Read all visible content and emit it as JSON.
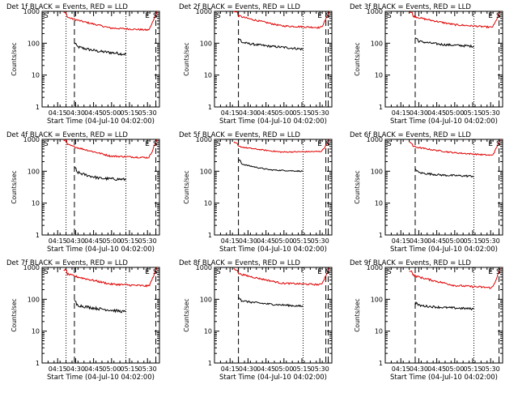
{
  "colors": {
    "events": "#000000",
    "lld": "#e00000",
    "axes": "#000000",
    "background": "#ffffff"
  },
  "chart_data": [
    {
      "type": "line",
      "title": "Det 1f BLACK = Events, RED = LLD",
      "xlabel": "Start Time (04-Jul-10 04:02:00)",
      "ylabel": "Counts/sec",
      "yscale": "log",
      "ylim": [
        1,
        1000
      ],
      "xlim": [
        "04:02",
        "05:40"
      ],
      "x_ticks": [
        "04:15",
        "04:30",
        "04:45",
        "05:00",
        "05:15",
        "05:30"
      ],
      "y_ticks": [
        "1",
        "10",
        "100",
        "1000"
      ],
      "markers": [
        {
          "label": "S",
          "time": "04:02"
        },
        {
          "label": "E",
          "time": "05:28"
        },
        {
          "label": "S",
          "time": "05:39"
        }
      ],
      "vlines": [
        {
          "time": "04:22",
          "style": "dotted"
        },
        {
          "time": "04:29",
          "style": "dashed"
        },
        {
          "time": "05:12",
          "style": "dotted"
        },
        {
          "time": "05:37",
          "style": "dashed"
        }
      ],
      "series": [
        {
          "name": "Events",
          "color": "#000000",
          "start": "04:29",
          "end": "05:12",
          "start_value": 90,
          "mid_value": 55,
          "end_value": 45,
          "noise": 0.1
        },
        {
          "name": "LLD",
          "color": "#e00000",
          "start": "04:20",
          "end": "05:38",
          "start_value": 800,
          "mid_value": 300,
          "end_value": 250,
          "rise_end": 1000,
          "noise": 0.06
        }
      ]
    },
    {
      "type": "line",
      "title": "Det 2f BLACK = Events, RED = LLD",
      "xlabel": "Start Time (04-Jul-10 04:02:00)",
      "ylabel": "Counts/sec",
      "yscale": "log",
      "ylim": [
        1,
        1000
      ],
      "xlim": [
        "04:02",
        "05:40"
      ],
      "x_ticks": [
        "04:15",
        "04:30",
        "04:45",
        "05:00",
        "05:15",
        "05:30"
      ],
      "y_ticks": [
        "1",
        "10",
        "100",
        "1000"
      ],
      "markers": [
        {
          "label": "S",
          "time": "04:02"
        },
        {
          "label": "E",
          "time": "05:28"
        },
        {
          "label": "S",
          "time": "05:39"
        }
      ],
      "vlines": [
        {
          "time": "04:22",
          "style": "dashed"
        },
        {
          "time": "05:16",
          "style": "dotted"
        },
        {
          "time": "05:35",
          "style": "dashed"
        },
        {
          "time": "05:37",
          "style": "dashed"
        }
      ],
      "series": [
        {
          "name": "Events",
          "color": "#000000",
          "start": "04:22",
          "end": "05:16",
          "start_value": 120,
          "mid_value": 80,
          "end_value": 65,
          "noise": 0.08
        },
        {
          "name": "LLD",
          "color": "#e00000",
          "start": "04:18",
          "end": "05:38",
          "start_value": 900,
          "mid_value": 350,
          "end_value": 300,
          "rise_end": 1000,
          "noise": 0.06
        }
      ]
    },
    {
      "type": "line",
      "title": "Det 3f BLACK = Events, RED = LLD",
      "xlabel": "Start Time (04-Jul-10 04:02:00)",
      "ylabel": "Counts/sec",
      "yscale": "log",
      "ylim": [
        1,
        1000
      ],
      "xlim": [
        "04:02",
        "05:40"
      ],
      "x_ticks": [
        "04:15",
        "04:30",
        "04:45",
        "05:00",
        "05:15",
        "05:30"
      ],
      "y_ticks": [
        "1",
        "10",
        "100",
        "1000"
      ],
      "markers": [
        {
          "label": "S",
          "time": "04:02"
        },
        {
          "label": "E",
          "time": "05:28"
        },
        {
          "label": "S",
          "time": "05:39"
        }
      ],
      "vlines": [
        {
          "time": "04:27",
          "style": "dashed"
        },
        {
          "time": "05:16",
          "style": "dotted"
        },
        {
          "time": "05:37",
          "style": "dashed"
        }
      ],
      "series": [
        {
          "name": "Events",
          "color": "#000000",
          "start": "04:27",
          "end": "05:16",
          "start_value": 130,
          "mid_value": 90,
          "end_value": 80,
          "noise": 0.08
        },
        {
          "name": "LLD",
          "color": "#e00000",
          "start": "04:22",
          "end": "05:38",
          "start_value": 850,
          "mid_value": 380,
          "end_value": 300,
          "rise_end": 1000,
          "noise": 0.06
        }
      ]
    },
    {
      "type": "line",
      "title": "Det 4f BLACK = Events, RED = LLD",
      "xlabel": "Start Time (04-Jul-10 04:02:00)",
      "ylabel": "Counts/sec",
      "yscale": "log",
      "ylim": [
        1,
        1000
      ],
      "xlim": [
        "04:02",
        "05:40"
      ],
      "x_ticks": [
        "04:15",
        "04:30",
        "04:45",
        "05:00",
        "05:15",
        "05:30"
      ],
      "y_ticks": [
        "1",
        "10",
        "100",
        "1000"
      ],
      "markers": [
        {
          "label": "S",
          "time": "04:02"
        },
        {
          "label": "E",
          "time": "05:28"
        },
        {
          "label": "S",
          "time": "05:39"
        }
      ],
      "vlines": [
        {
          "time": "04:22",
          "style": "dotted"
        },
        {
          "time": "04:29",
          "style": "dashed"
        },
        {
          "time": "05:12",
          "style": "dotted"
        },
        {
          "time": "05:37",
          "style": "dashed"
        }
      ],
      "series": [
        {
          "name": "Events",
          "color": "#000000",
          "start": "04:29",
          "end": "05:12",
          "start_value": 110,
          "mid_value": 60,
          "end_value": 55,
          "noise": 0.1
        },
        {
          "name": "LLD",
          "color": "#e00000",
          "start": "04:20",
          "end": "05:38",
          "start_value": 850,
          "mid_value": 300,
          "end_value": 260,
          "rise_end": 1000,
          "noise": 0.06
        }
      ]
    },
    {
      "type": "line",
      "title": "Det 5f BLACK = Events, RED = LLD",
      "xlabel": "Start Time (04-Jul-10 04:02:00)",
      "ylabel": "Counts/sec",
      "yscale": "log",
      "ylim": [
        1,
        1000
      ],
      "xlim": [
        "04:02",
        "05:40"
      ],
      "x_ticks": [
        "04:15",
        "04:30",
        "04:45",
        "05:00",
        "05:15",
        "05:30"
      ],
      "y_ticks": [
        "1",
        "10",
        "100",
        "1000"
      ],
      "markers": [
        {
          "label": "S",
          "time": "04:02"
        },
        {
          "label": "E",
          "time": "05:28"
        },
        {
          "label": "S",
          "time": "05:39"
        }
      ],
      "vlines": [
        {
          "time": "04:22",
          "style": "dashed"
        },
        {
          "time": "05:16",
          "style": "dotted"
        },
        {
          "time": "05:35",
          "style": "dashed"
        },
        {
          "time": "05:37",
          "style": "dashed"
        }
      ],
      "series": [
        {
          "name": "Events",
          "color": "#000000",
          "start": "04:22",
          "end": "05:16",
          "start_value": 200,
          "mid_value": 110,
          "end_value": 100,
          "noise": 0.04
        },
        {
          "name": "LLD",
          "color": "#e00000",
          "start": "04:18",
          "end": "05:38",
          "start_value": 700,
          "mid_value": 400,
          "end_value": 420,
          "rise_end": 1000,
          "noise": 0.04
        }
      ]
    },
    {
      "type": "line",
      "title": "Det 6f BLACK = Events, RED = LLD",
      "xlabel": "Start Time (04-Jul-10 04:02:00)",
      "ylabel": "Counts/sec",
      "yscale": "log",
      "ylim": [
        1,
        1000
      ],
      "xlim": [
        "04:02",
        "05:40"
      ],
      "x_ticks": [
        "04:15",
        "04:30",
        "04:45",
        "05:00",
        "05:15",
        "05:30"
      ],
      "y_ticks": [
        "1",
        "10",
        "100",
        "1000"
      ],
      "markers": [
        {
          "label": "S",
          "time": "04:02"
        },
        {
          "label": "E",
          "time": "05:28"
        },
        {
          "label": "S",
          "time": "05:39"
        }
      ],
      "vlines": [
        {
          "time": "04:27",
          "style": "dashed"
        },
        {
          "time": "05:16",
          "style": "dotted"
        },
        {
          "time": "05:37",
          "style": "dashed"
        }
      ],
      "series": [
        {
          "name": "Events",
          "color": "#000000",
          "start": "04:27",
          "end": "05:16",
          "start_value": 100,
          "mid_value": 75,
          "end_value": 70,
          "noise": 0.07
        },
        {
          "name": "LLD",
          "color": "#e00000",
          "start": "04:22",
          "end": "05:38",
          "start_value": 700,
          "mid_value": 380,
          "end_value": 300,
          "rise_end": 1000,
          "noise": 0.05
        }
      ]
    },
    {
      "type": "line",
      "title": "Det 7f BLACK = Events, RED = LLD",
      "xlabel": "Start Time (04-Jul-10 04:02:00)",
      "ylabel": "Counts/sec",
      "yscale": "log",
      "ylim": [
        1,
        1000
      ],
      "xlim": [
        "04:02",
        "05:40"
      ],
      "x_ticks": [
        "04:15",
        "04:30",
        "04:45",
        "05:00",
        "05:15",
        "05:30"
      ],
      "y_ticks": [
        "1",
        "10",
        "100",
        "1000"
      ],
      "markers": [
        {
          "label": "S",
          "time": "04:02"
        },
        {
          "label": "E",
          "time": "05:28"
        },
        {
          "label": "S",
          "time": "05:39"
        }
      ],
      "vlines": [
        {
          "time": "04:22",
          "style": "dotted"
        },
        {
          "time": "04:29",
          "style": "dashed"
        },
        {
          "time": "05:12",
          "style": "dotted"
        },
        {
          "time": "05:37",
          "style": "dashed"
        }
      ],
      "series": [
        {
          "name": "Events",
          "color": "#000000",
          "start": "04:29",
          "end": "05:12",
          "start_value": 75,
          "mid_value": 50,
          "end_value": 40,
          "noise": 0.1
        },
        {
          "name": "LLD",
          "color": "#e00000",
          "start": "04:20",
          "end": "05:38",
          "start_value": 750,
          "mid_value": 300,
          "end_value": 250,
          "rise_end": 1000,
          "noise": 0.07
        }
      ]
    },
    {
      "type": "line",
      "title": "Det 8f BLACK = Events, RED = LLD",
      "xlabel": "Start Time (04-Jul-10 04:02:00)",
      "ylabel": "Counts/sec",
      "yscale": "log",
      "ylim": [
        1,
        1000
      ],
      "xlim": [
        "04:02",
        "05:40"
      ],
      "x_ticks": [
        "04:15",
        "04:30",
        "04:45",
        "05:00",
        "05:15",
        "05:30"
      ],
      "y_ticks": [
        "1",
        "10",
        "100",
        "1000"
      ],
      "markers": [
        {
          "label": "S",
          "time": "04:02"
        },
        {
          "label": "E",
          "time": "05:28"
        },
        {
          "label": "S",
          "time": "05:39"
        }
      ],
      "vlines": [
        {
          "time": "04:22",
          "style": "dashed"
        },
        {
          "time": "05:16",
          "style": "dotted"
        },
        {
          "time": "05:35",
          "style": "dashed"
        },
        {
          "time": "05:37",
          "style": "dashed"
        }
      ],
      "series": [
        {
          "name": "Events",
          "color": "#000000",
          "start": "04:22",
          "end": "05:16",
          "start_value": 100,
          "mid_value": 70,
          "end_value": 60,
          "noise": 0.07
        },
        {
          "name": "LLD",
          "color": "#e00000",
          "start": "04:18",
          "end": "05:38",
          "start_value": 800,
          "mid_value": 320,
          "end_value": 280,
          "rise_end": 1000,
          "noise": 0.06
        }
      ]
    },
    {
      "type": "line",
      "title": "Det 9f BLACK = Events, RED = LLD",
      "xlabel": "Start Time (04-Jul-10 04:02:00)",
      "ylabel": "Counts/sec",
      "yscale": "log",
      "ylim": [
        1,
        1000
      ],
      "xlim": [
        "04:02",
        "05:40"
      ],
      "x_ticks": [
        "04:15",
        "04:30",
        "04:45",
        "05:00",
        "05:15",
        "05:30"
      ],
      "y_ticks": [
        "1",
        "10",
        "100",
        "1000"
      ],
      "markers": [
        {
          "label": "S",
          "time": "04:02"
        },
        {
          "label": "E",
          "time": "05:28"
        },
        {
          "label": "S",
          "time": "05:39"
        }
      ],
      "vlines": [
        {
          "time": "04:27",
          "style": "dashed"
        },
        {
          "time": "05:16",
          "style": "dotted"
        },
        {
          "time": "05:37",
          "style": "dashed"
        }
      ],
      "series": [
        {
          "name": "Events",
          "color": "#000000",
          "start": "04:27",
          "end": "05:16",
          "start_value": 70,
          "mid_value": 55,
          "end_value": 50,
          "noise": 0.08
        },
        {
          "name": "LLD",
          "color": "#e00000",
          "start": "04:22",
          "end": "05:38",
          "start_value": 700,
          "mid_value": 270,
          "end_value": 220,
          "rise_end": 900,
          "noise": 0.07
        }
      ]
    }
  ]
}
